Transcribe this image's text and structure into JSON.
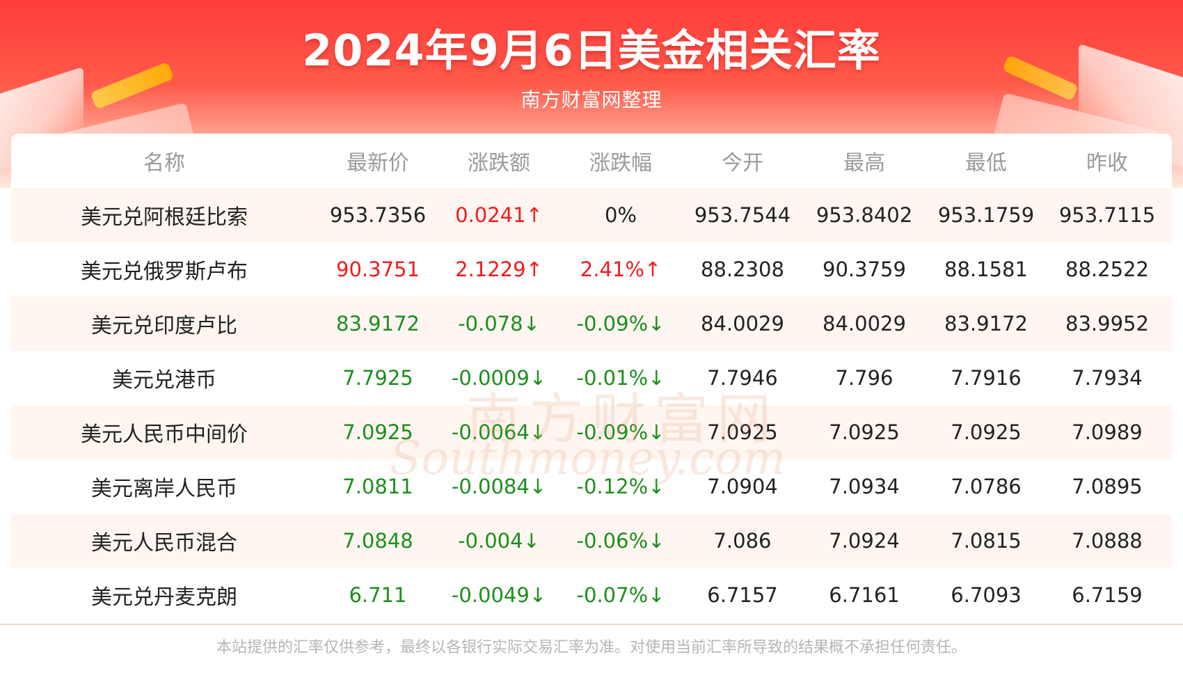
{
  "header": {
    "title": "2024年9月6日美金相关汇率",
    "subtitle": "南方财富网整理"
  },
  "colors": {
    "up": "#f11b1b",
    "down": "#1b8f1b",
    "banner": "#fe3d3c",
    "row_shade": "#fff6f1"
  },
  "table": {
    "columns": [
      "名称",
      "最新价",
      "涨跌额",
      "涨跌幅",
      "今开",
      "最高",
      "最低",
      "昨收"
    ],
    "rows": [
      {
        "name": "美元兑阿根廷比索",
        "latest": "953.7356",
        "change": "0.0241↑",
        "pct": "0%",
        "open": "953.7544",
        "high": "953.8402",
        "low": "953.1759",
        "prev": "953.7115",
        "latest_dir": "flat",
        "change_dir": "up",
        "pct_dir": "flat"
      },
      {
        "name": "美元兑俄罗斯卢布",
        "latest": "90.3751",
        "change": "2.1229↑",
        "pct": "2.41%↑",
        "open": "88.2308",
        "high": "90.3759",
        "low": "88.1581",
        "prev": "88.2522",
        "latest_dir": "up",
        "change_dir": "up",
        "pct_dir": "up"
      },
      {
        "name": "美元兑印度卢比",
        "latest": "83.9172",
        "change": "-0.078↓",
        "pct": "-0.09%↓",
        "open": "84.0029",
        "high": "84.0029",
        "low": "83.9172",
        "prev": "83.9952",
        "latest_dir": "down",
        "change_dir": "down",
        "pct_dir": "down"
      },
      {
        "name": "美元兑港币",
        "latest": "7.7925",
        "change": "-0.0009↓",
        "pct": "-0.01%↓",
        "open": "7.7946",
        "high": "7.796",
        "low": "7.7916",
        "prev": "7.7934",
        "latest_dir": "down",
        "change_dir": "down",
        "pct_dir": "down"
      },
      {
        "name": "美元人民币中间价",
        "latest": "7.0925",
        "change": "-0.0064↓",
        "pct": "-0.09%↓",
        "open": "7.0925",
        "high": "7.0925",
        "low": "7.0925",
        "prev": "7.0989",
        "latest_dir": "down",
        "change_dir": "down",
        "pct_dir": "down"
      },
      {
        "name": "美元离岸人民币",
        "latest": "7.0811",
        "change": "-0.0084↓",
        "pct": "-0.12%↓",
        "open": "7.0904",
        "high": "7.0934",
        "low": "7.0786",
        "prev": "7.0895",
        "latest_dir": "down",
        "change_dir": "down",
        "pct_dir": "down"
      },
      {
        "name": "美元人民币混合",
        "latest": "7.0848",
        "change": "-0.004↓",
        "pct": "-0.06%↓",
        "open": "7.086",
        "high": "7.0924",
        "low": "7.0815",
        "prev": "7.0888",
        "latest_dir": "down",
        "change_dir": "down",
        "pct_dir": "down"
      },
      {
        "name": "美元兑丹麦克朗",
        "latest": "6.711",
        "change": "-0.0049↓",
        "pct": "-0.07%↓",
        "open": "6.7157",
        "high": "6.7161",
        "low": "6.7093",
        "prev": "6.7159",
        "latest_dir": "down",
        "change_dir": "down",
        "pct_dir": "down"
      }
    ]
  },
  "watermark": {
    "cn": "南方财富网",
    "en": "Southmoney.com"
  },
  "footer": {
    "disclaimer": "本站提供的汇率仅供参考，最终以各银行实际交易汇率为准。对使用当前汇率所导致的结果概不承担任何责任。"
  }
}
